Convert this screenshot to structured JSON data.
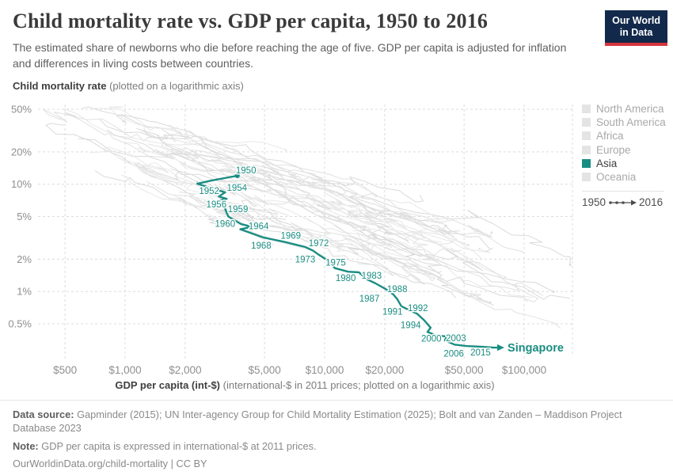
{
  "header": {
    "title": "Child mortality rate vs. GDP per capita, 1950 to 2016",
    "subtitle": "The estimated share of newborns who die before reaching the age of five. GDP per capita is adjusted for inflation and differences in living costs between countries.",
    "logo": {
      "line1": "Our World",
      "line2": "in Data"
    }
  },
  "colors": {
    "accent_teal": "#1a8d82",
    "logo_navy": "#12294b",
    "logo_red": "#d7353c",
    "gridline": "#dcdcdc",
    "inactive_line": "#e2e2e2",
    "tick_text": "#8f8f8f"
  },
  "chart_data": {
    "type": "line",
    "title": "Child mortality rate vs. GDP per capita, 1950 to 2016",
    "x_axis": {
      "label_bold": "GDP per capita (int-$)",
      "label_rest": " (international-$ in 2011 prices; plotted on a logarithmic axis)",
      "scale": "log",
      "ticks": [
        {
          "value": 500,
          "label": "$500"
        },
        {
          "value": 1000,
          "label": "$1,000"
        },
        {
          "value": 2000,
          "label": "$2,000"
        },
        {
          "value": 5000,
          "label": "$5,000"
        },
        {
          "value": 10000,
          "label": "$10,000"
        },
        {
          "value": 20000,
          "label": "$20,000"
        },
        {
          "value": 50000,
          "label": "$50,000"
        },
        {
          "value": 100000,
          "label": "$100,000"
        }
      ]
    },
    "y_axis": {
      "label_bold": "Child mortality rate",
      "label_rest": " (plotted on a logarithmic axis)",
      "scale": "log",
      "unit": "%",
      "ticks": [
        {
          "value": 50,
          "label": "50%"
        },
        {
          "value": 20,
          "label": "20%"
        },
        {
          "value": 10,
          "label": "10%"
        },
        {
          "value": 5,
          "label": "5%"
        },
        {
          "value": 2,
          "label": "2%"
        },
        {
          "value": 1,
          "label": "1%"
        },
        {
          "value": 0.5,
          "label": "0.5%"
        }
      ]
    },
    "series": [
      {
        "name": "Singapore",
        "region": "Asia",
        "color": "#1a8d82",
        "end_label": "Singapore",
        "points": [
          [
            1950,
            3650,
            12.0
          ],
          [
            1951,
            2690,
            10.8
          ],
          [
            1952,
            2300,
            10.1
          ],
          [
            1954,
            3170,
            8.4
          ],
          [
            1955,
            2950,
            7.7
          ],
          [
            1956,
            3230,
            7.3
          ],
          [
            1957,
            2890,
            7.0
          ],
          [
            1958,
            3170,
            6.9
          ],
          [
            1959,
            3150,
            6.1
          ],
          [
            1960,
            3290,
            5.0
          ],
          [
            1962,
            3820,
            4.25
          ],
          [
            1964,
            4340,
            4.0
          ],
          [
            1965,
            3780,
            3.8
          ],
          [
            1968,
            4900,
            3.2
          ],
          [
            1969,
            6290,
            2.9
          ],
          [
            1972,
            8000,
            2.6
          ],
          [
            1973,
            8760,
            2.4
          ],
          [
            1974,
            9350,
            2.2
          ],
          [
            1975,
            10560,
            1.9
          ],
          [
            1978,
            11250,
            1.65
          ],
          [
            1980,
            13110,
            1.53
          ],
          [
            1981,
            14870,
            1.51
          ],
          [
            1983,
            16290,
            1.3
          ],
          [
            1985,
            17860,
            1.2
          ],
          [
            1987,
            20130,
            1.06
          ],
          [
            1988,
            22080,
            0.94
          ],
          [
            1990,
            23120,
            0.85
          ],
          [
            1991,
            24210,
            0.73
          ],
          [
            1992,
            26530,
            0.67
          ],
          [
            1993,
            29070,
            0.62
          ],
          [
            1994,
            31540,
            0.54
          ],
          [
            1997,
            33980,
            0.46
          ],
          [
            1998,
            32770,
            0.42
          ],
          [
            2000,
            36190,
            0.39
          ],
          [
            2002,
            40800,
            0.38
          ],
          [
            2003,
            40060,
            0.35
          ],
          [
            2006,
            44800,
            0.32
          ],
          [
            2009,
            51400,
            0.31
          ],
          [
            2012,
            61900,
            0.305
          ],
          [
            2015,
            70000,
            0.3
          ],
          [
            2016,
            74000,
            0.3
          ]
        ],
        "labeled_years": [
          1950,
          1952,
          1954,
          1956,
          1959,
          1960,
          1964,
          1968,
          1969,
          1972,
          1973,
          1975,
          1980,
          1983,
          1987,
          1988,
          1991,
          1992,
          1994,
          2000,
          2003,
          2006,
          2015
        ]
      }
    ],
    "legend": {
      "items": [
        {
          "label": "North America",
          "active": false
        },
        {
          "label": "South America",
          "active": false
        },
        {
          "label": "Africa",
          "active": false
        },
        {
          "label": "Europe",
          "active": false
        },
        {
          "label": "Asia",
          "active": true
        },
        {
          "label": "Oceania",
          "active": false
        }
      ],
      "timeline_start": "1950",
      "timeline_end": "2016"
    }
  },
  "footer": {
    "source_bold": "Data source:",
    "source_rest": " Gapminder (2015); UN Inter-agency Group for Child Mortality Estimation (2025); Bolt and van Zanden – Maddison Project Database 2023",
    "note_bold": "Note:",
    "note_rest": " GDP per capita is expressed in international-$ at 2011 prices.",
    "url": "OurWorldinData.org/child-mortality | CC BY"
  }
}
